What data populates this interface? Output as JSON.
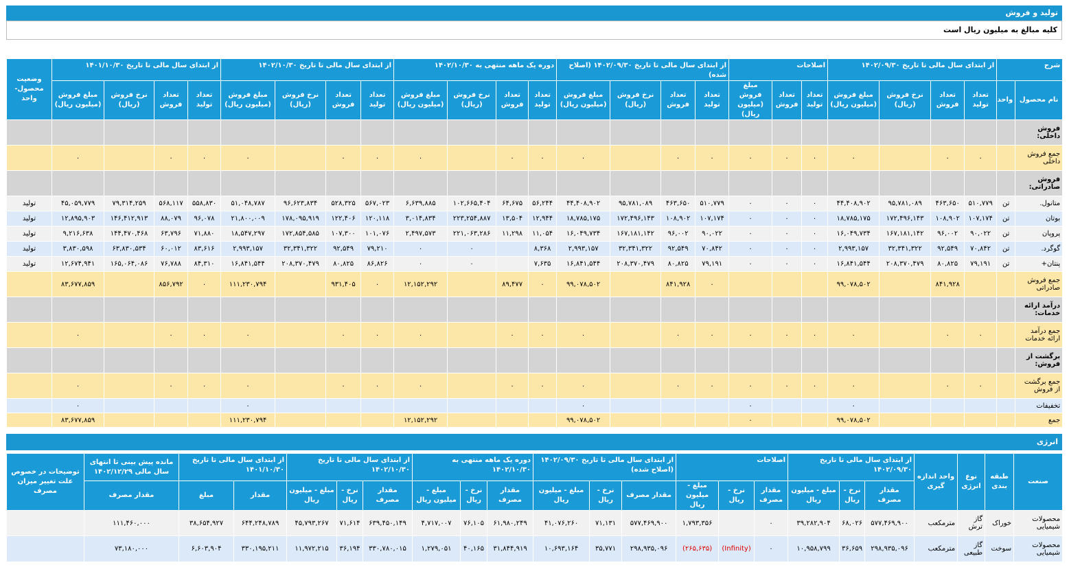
{
  "title": "تولید و فروش",
  "subtitle": "کلیه مبالغ به میلیون ریال است",
  "table1": {
    "header_row1": [
      "شرح",
      "از ابتدای سال مالی تا تاریخ ۱۴۰۲/۰۹/۳۰",
      "اصلاحات",
      "از ابتدای سال مالی تا تاریخ ۱۴۰۲/۰۹/۳۰ (اصلاح شده)",
      "دوره یک ماهه منتهی به ۱۴۰۲/۱۰/۳۰",
      "از ابتدای سال مالی تا تاریخ ۱۴۰۲/۱۰/۳۰",
      "از ابتدای سال مالی تا تاریخ ۱۴۰۱/۱۰/۳۰",
      "وضعیت محصول-واحد"
    ],
    "header_row2": [
      "نام محصول",
      "واحد",
      "تعداد تولید",
      "تعداد فروش",
      "نرخ فروش (ریال)",
      "مبلغ فروش (میلیون ریال)",
      "تعداد تولید",
      "تعداد فروش",
      "مبلغ فروش (میلیون ریال)",
      "تعداد تولید",
      "تعداد فروش",
      "نرخ فروش (ریال)",
      "مبلغ فروش (میلیون ریال)",
      "تعداد تولید",
      "تعداد فروش",
      "نرخ فروش (ریال)",
      "مبلغ فروش (میلیون ریال)",
      "تعداد تولید",
      "تعداد فروش",
      "نرخ فروش (ریال)",
      "مبلغ فروش (میلیون ریال)",
      "تعداد تولید",
      "تعداد فروش",
      "نرخ فروش (ریال)",
      "مبلغ فروش (میلیون ریال)"
    ],
    "rows": [
      [
        "فروش داخلی:",
        null,
        null,
        null,
        null,
        null,
        null,
        null,
        null,
        null,
        null,
        null,
        null,
        null,
        null,
        null,
        null,
        null,
        null,
        null,
        null,
        null,
        null,
        null,
        null,
        null
      ],
      [
        "جمع فروش داخلی",
        null,
        "۰",
        "۰",
        null,
        "۰",
        "۰",
        "۰",
        "۰",
        "۰",
        "۰",
        null,
        "۰",
        "۰",
        "۰",
        null,
        "۰",
        "۰",
        "۰",
        null,
        "۰",
        "۰",
        "۰",
        null,
        "۰",
        null
      ],
      [
        "فروش صادراتی:",
        null,
        null,
        null,
        null,
        null,
        null,
        null,
        null,
        null,
        null,
        null,
        null,
        null,
        null,
        null,
        null,
        null,
        null,
        null,
        null,
        null,
        null,
        null,
        null,
        null
      ],
      [
        "متانول.",
        "تن",
        "۵۱۰,۷۷۹",
        "۴۶۳,۶۵۰",
        "۹۵,۷۸۱,۰۸۹",
        "۴۴,۴۰۸,۹۰۲",
        "۰",
        "۰",
        "۰",
        "۵۱۰,۷۷۹",
        "۴۶۳,۶۵۰",
        "۹۵,۷۸۱,۰۸۹",
        "۴۴,۴۰۸,۹۰۲",
        "۵۶,۲۴۴",
        "۶۴,۶۷۵",
        "۱۰۲,۶۶۵,۴۰۴",
        "۶,۶۳۹,۸۸۵",
        "۵۶۷,۰۲۳",
        "۵۲۸,۳۲۵",
        "۹۶,۶۲۳,۸۳۴",
        "۵۱,۰۴۸,۷۸۷",
        "۵۵۸,۸۳۰",
        "۵۶۸,۱۱۷",
        "۷۹,۳۱۴,۲۵۹",
        "۴۵,۰۵۹,۷۷۹",
        "تولید"
      ],
      [
        "بوتان",
        "تن",
        "۱۰۷,۱۷۴",
        "۱۰۸,۹۰۲",
        "۱۷۲,۴۹۶,۱۴۳",
        "۱۸,۷۸۵,۱۷۵",
        "۰",
        "۰",
        "۰",
        "۱۰۷,۱۷۴",
        "۱۰۸,۹۰۲",
        "۱۷۲,۴۹۶,۱۴۳",
        "۱۸,۷۸۵,۱۷۵",
        "۱۲,۹۴۴",
        "۱۳,۵۰۴",
        "۲۲۳,۲۵۴,۸۸۷",
        "۳,۰۱۴,۸۳۴",
        "۱۲۰,۱۱۸",
        "۱۲۲,۴۰۶",
        "۱۷۸,۰۹۵,۹۱۹",
        "۲۱,۸۰۰,۰۰۹",
        "۹۶,۰۷۸",
        "۸۸,۰۷۹",
        "۱۴۶,۴۱۲,۹۱۳",
        "۱۲,۸۹۵,۹۰۳",
        "تولید"
      ],
      [
        "پروپان",
        "تن",
        "۹۰,۰۲۲",
        "۹۶,۰۰۲",
        "۱۶۷,۱۸۱,۱۴۲",
        "۱۶,۰۴۹,۷۳۴",
        "۰",
        "۰",
        "۰",
        "۹۰,۰۲۲",
        "۹۶,۰۰۲",
        "۱۶۷,۱۸۱,۱۴۲",
        "۱۶,۰۴۹,۷۳۴",
        "۱۱,۰۵۴",
        "۱۱,۲۹۸",
        "۲۲۱,۰۶۳,۲۸۶",
        "۲,۴۹۷,۵۷۳",
        "۱۰۱,۰۷۶",
        "۱۰۷,۳۰۰",
        "۱۷۲,۸۵۴,۵۸۵",
        "۱۸,۵۴۷,۲۹۷",
        "۷۱,۸۸۰",
        "۶۳,۷۹۶",
        "۱۴۴,۴۷۰,۴۶۸",
        "۹,۲۱۶,۶۳۸",
        "تولید"
      ],
      [
        "گوگرد.",
        "تن",
        "۷۰,۸۴۲",
        "۹۲,۵۴۹",
        "۳۲,۳۴۱,۳۲۲",
        "۲,۹۹۳,۱۵۷",
        "۰",
        "۰",
        "۰",
        "۷۰,۸۴۲",
        "۹۲,۵۴۹",
        "۳۲,۳۴۱,۳۲۲",
        "۲,۹۹۳,۱۵۷",
        "۸,۳۶۸",
        null,
        "۰",
        "۰",
        "۷۹,۲۱۰",
        "۹۲,۵۴۹",
        "۳۲,۳۴۱,۳۲۲",
        "۲,۹۹۳,۱۵۷",
        "۸۳,۶۱۶",
        "۶۰,۰۱۲",
        "۶۳,۸۳۰,۵۳۴",
        "۳,۸۳۰,۵۹۸",
        "تولید"
      ],
      [
        "پنتان+",
        "تن",
        "۷۹,۱۹۱",
        "۸۰,۸۲۵",
        "۲۰۸,۳۷۰,۴۷۹",
        "۱۶,۸۴۱,۵۴۴",
        "۰",
        "۰",
        "۰",
        "۷۹,۱۹۱",
        "۸۰,۸۲۵",
        "۲۰۸,۳۷۰,۴۷۹",
        "۱۶,۸۴۱,۵۴۴",
        "۷,۶۳۵",
        null,
        "۰",
        "۰",
        "۸۶,۸۲۶",
        "۸۰,۸۲۵",
        "۲۰۸,۳۷۰,۴۷۹",
        "۱۶,۸۴۱,۵۴۴",
        "۸۴,۳۱۰",
        "۷۶,۷۸۸",
        "۱۶۵,۰۶۴,۰۸۶",
        "۱۲,۶۷۴,۹۴۱",
        "تولید"
      ],
      [
        "جمع فروش صادراتی",
        null,
        null,
        "۸۴۱,۹۲۸",
        null,
        "۹۹,۰۷۸,۵۰۲",
        null,
        null,
        null,
        "۰",
        "۸۴۱,۹۲۸",
        null,
        "۹۹,۰۷۸,۵۰۲",
        "۰",
        "۸۹,۴۷۷",
        null,
        "۱۲,۱۵۲,۲۹۲",
        "۰",
        "۹۳۱,۴۰۵",
        null,
        "۱۱۱,۲۳۰,۷۹۴",
        "۰",
        "۸۵۶,۷۹۲",
        null,
        "۸۳,۶۷۷,۸۵۹",
        null
      ],
      [
        "درآمد ارائه خدمات:",
        null,
        null,
        null,
        null,
        null,
        null,
        null,
        null,
        null,
        null,
        null,
        null,
        null,
        null,
        null,
        null,
        null,
        null,
        null,
        null,
        null,
        null,
        null,
        null,
        null
      ],
      [
        "جمع درآمد ارائه خدمات",
        null,
        "۰",
        "۰",
        null,
        "۰",
        "۰",
        "۰",
        "۰",
        "۰",
        "۰",
        null,
        "۰",
        "۰",
        "۰",
        null,
        "۰",
        "۰",
        "۰",
        null,
        "۰",
        "۰",
        "۰",
        null,
        "۰",
        null
      ],
      [
        "برگشت از فروش:",
        null,
        null,
        null,
        null,
        null,
        null,
        null,
        null,
        null,
        null,
        null,
        null,
        null,
        null,
        null,
        null,
        null,
        null,
        null,
        null,
        null,
        null,
        null,
        null,
        null
      ],
      [
        "جمع برگشت از فروش",
        null,
        "۰",
        "۰",
        null,
        "۰",
        "۰",
        "۰",
        "۰",
        "۰",
        "۰",
        null,
        "۰",
        "۰",
        "۰",
        null,
        "۰",
        "۰",
        "۰",
        null,
        "۰",
        "۰",
        "۰",
        null,
        "۰",
        null
      ],
      [
        "تخفیفات",
        null,
        null,
        null,
        null,
        "۰",
        null,
        null,
        "۰",
        null,
        null,
        null,
        "۰",
        null,
        null,
        null,
        null,
        null,
        null,
        null,
        "۰",
        null,
        null,
        null,
        "۰",
        null
      ],
      [
        "جمع",
        null,
        null,
        null,
        null,
        "۹۹,۰۷۸,۵۰۲",
        null,
        null,
        "۰",
        null,
        null,
        null,
        "۹۹,۰۷۸,۵۰۲",
        null,
        null,
        null,
        "۱۲,۱۵۲,۲۹۲",
        null,
        null,
        null,
        "۱۱۱,۲۳۰,۷۹۴",
        null,
        null,
        null,
        "۸۳,۶۷۷,۸۵۹",
        null
      ]
    ]
  },
  "energy_title": "انرژی",
  "table2": {
    "header_row1": [
      "صنعت",
      "طبقه بندی",
      "نوع انرژی",
      "واحد اندازه گیری",
      "از ابتدای سال مالی تا تاریخ ۱۴۰۲/۰۹/۳۰",
      "اصلاحات",
      "از ابتدای سال مالی تا تاریخ ۱۴۰۲/۰۹/۳۰ (اصلاح شده)",
      "دوره یک ماهه منتهی به ۱۴۰۲/۱۰/۳۰",
      "از ابتدای سال مالی تا تاریخ ۱۴۰۲/۱۰/۳۰",
      "از ابتدای سال مالی تا تاریخ ۱۴۰۱/۱۰/۳۰",
      "مانده پیش بینی تا انتهای سال مالی ۱۴۰۲/۱۲/۲۹",
      "توضیحات در خصوص علت تغییر میزان مصرف"
    ],
    "header_row2": [
      "مقدار مصرف",
      "نرخ - ریال",
      "مبلغ - میلیون ریال",
      "مقدار مصرف",
      "نرخ - ریال",
      "مبلغ - میلیون ریال",
      "مقدار مصرف",
      "نرخ - ریال",
      "مبلغ - میلیون ریال",
      "مقدار مصرف",
      "نرخ - ریال",
      "مبلغ - میلیون ریال",
      "مقدار مصرف",
      "نرخ - ریال",
      "مبلغ - میلیون ریال",
      "مقدار",
      "مبلغ",
      "مقدار مصرف"
    ],
    "rows": [
      [
        "محصولات شیمیایی",
        "خوراک",
        "گاز ترش",
        "مترمکعب",
        "۵۷۷,۴۶۹,۹۰۰",
        "۶۸,۰۲۶",
        "۳۹,۲۸۲,۹۰۴",
        "۰",
        null,
        "۱,۷۹۳,۳۵۶",
        "۵۷۷,۴۶۹,۹۰۰",
        "۷۱,۱۳۱",
        "۴۱,۰۷۶,۲۶۰",
        "۶۱,۹۸۰,۲۴۹",
        "۷۶,۱۰۵",
        "۴,۷۱۷,۰۰۷",
        "۶۳۹,۴۵۰,۱۴۹",
        "۷۱,۶۱۴",
        "۴۵,۷۹۳,۲۶۷",
        "۶۴۴,۲۴۸,۷۸۹",
        "۳۸,۶۵۴,۹۲۷",
        "۱۱۱,۴۶۰,۰۰۰",
        null
      ],
      [
        "محصولات شیمیایی",
        "سوخت",
        "گاز طبیعی",
        "مترمکعب",
        "۲۹۸,۹۳۵,۰۹۶",
        "۳۶,۶۵۹",
        "۱۰,۹۵۸,۷۹۹",
        "۰",
        "(Infinity)",
        "(۲۶۵,۶۳۵)",
        "۲۹۸,۹۳۵,۰۹۶",
        "۳۵,۷۷۱",
        "۱۰,۶۹۳,۱۶۴",
        "۳۱,۸۴۴,۹۱۹",
        "۴۰,۱۶۵",
        "۱,۲۷۹,۰۵۱",
        "۳۳۰,۷۸۰,۰۱۵",
        "۳۶,۱۹۴",
        "۱۱,۹۷۲,۲۱۵",
        "۳۳۰,۱۹۵,۲۱۱",
        "۶,۶۰۳,۹۰۴",
        "۷۳,۱۸۰,۰۰۰",
        null
      ]
    ]
  }
}
